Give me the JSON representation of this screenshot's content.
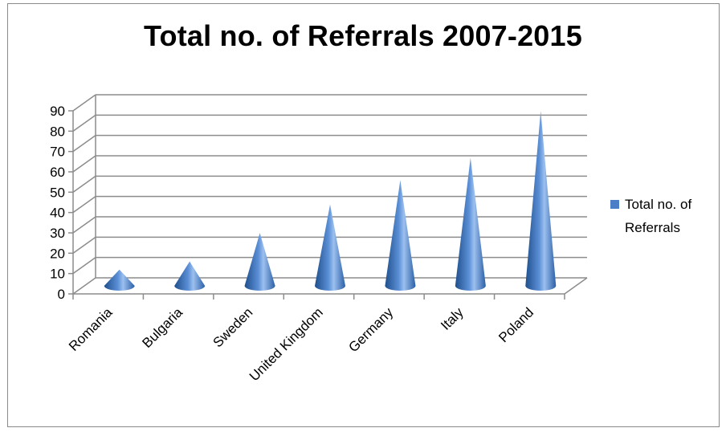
{
  "chart_data": {
    "type": "bar",
    "subtype": "3d-cone",
    "title": "Total no. of Referrals 2007-2015",
    "categories": [
      "Romania",
      "Bulgaria",
      "Sweden",
      "United Kingdom",
      "Germany",
      "Italy",
      "Poland"
    ],
    "series": [
      {
        "name": "Total no. of Referrals",
        "values": [
          8,
          12,
          26,
          40,
          52,
          63,
          86
        ]
      }
    ],
    "y_ticks": [
      "0",
      "10",
      "20",
      "30",
      "40",
      "50",
      "60",
      "70",
      "80",
      "90"
    ],
    "ylim": [
      0,
      90
    ],
    "xlabel": "",
    "ylabel": "",
    "grid": true,
    "legend_position": "right",
    "legend": {
      "line1": "Total no. of",
      "line2": "Referrals"
    },
    "colors": {
      "cone_dark": "#1f4f8c",
      "cone_mid": "#5b8fd6",
      "cone_light": "#9cc0ef",
      "grid": "#8c8c8c",
      "legend_swatch": "#4a7fc8"
    }
  }
}
